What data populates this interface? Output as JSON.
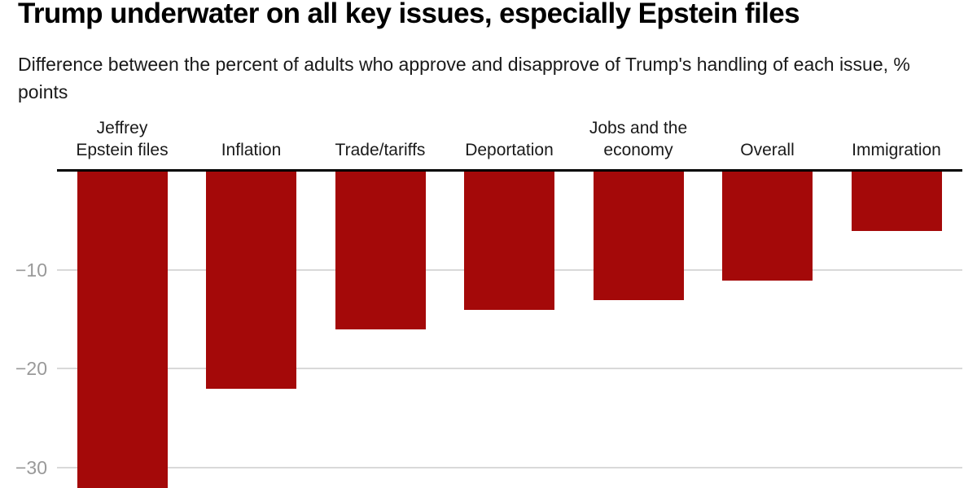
{
  "header": {
    "title": "Trump underwater on all key issues, especially Epstein files",
    "subtitle": "Difference between the percent of adults who approve and disapprove of Trump's handling of each issue, % points"
  },
  "chart_data": {
    "type": "bar",
    "title": "Trump underwater on all key issues, especially Epstein files",
    "subtitle": "Difference between the percent of adults who approve and disapprove of Trump's handling of each issue, % points",
    "categories": [
      "Jeffrey Epstein files",
      "Inflation",
      "Trade/tariffs",
      "Deportation",
      "Jobs and the economy",
      "Overall",
      "Immigration"
    ],
    "category_label_lines": [
      [
        "Jeffrey",
        "Epstein files"
      ],
      [
        "Inflation"
      ],
      [
        "Trade/tariffs"
      ],
      [
        "Deportation"
      ],
      [
        "Jobs and the",
        "economy"
      ],
      [
        "Overall"
      ],
      [
        "Immigration"
      ]
    ],
    "values": [
      -34,
      -22,
      -16,
      -14,
      -13,
      -11,
      -6
    ],
    "xlabel": "",
    "ylabel": "% points",
    "yticks": [
      -10,
      -20,
      -30
    ],
    "ytick_labels": [
      "−10",
      "−20",
      "−30"
    ],
    "ylim": [
      -35,
      0
    ],
    "grid": true,
    "legend": false,
    "bar_color": "#a40909",
    "gridline_color": "#d9d9d9",
    "axis_line_color": "#000000",
    "tick_label_color": "#999999",
    "note_first_bar": "bar extends beyond bottom edge of image (clipped)"
  }
}
